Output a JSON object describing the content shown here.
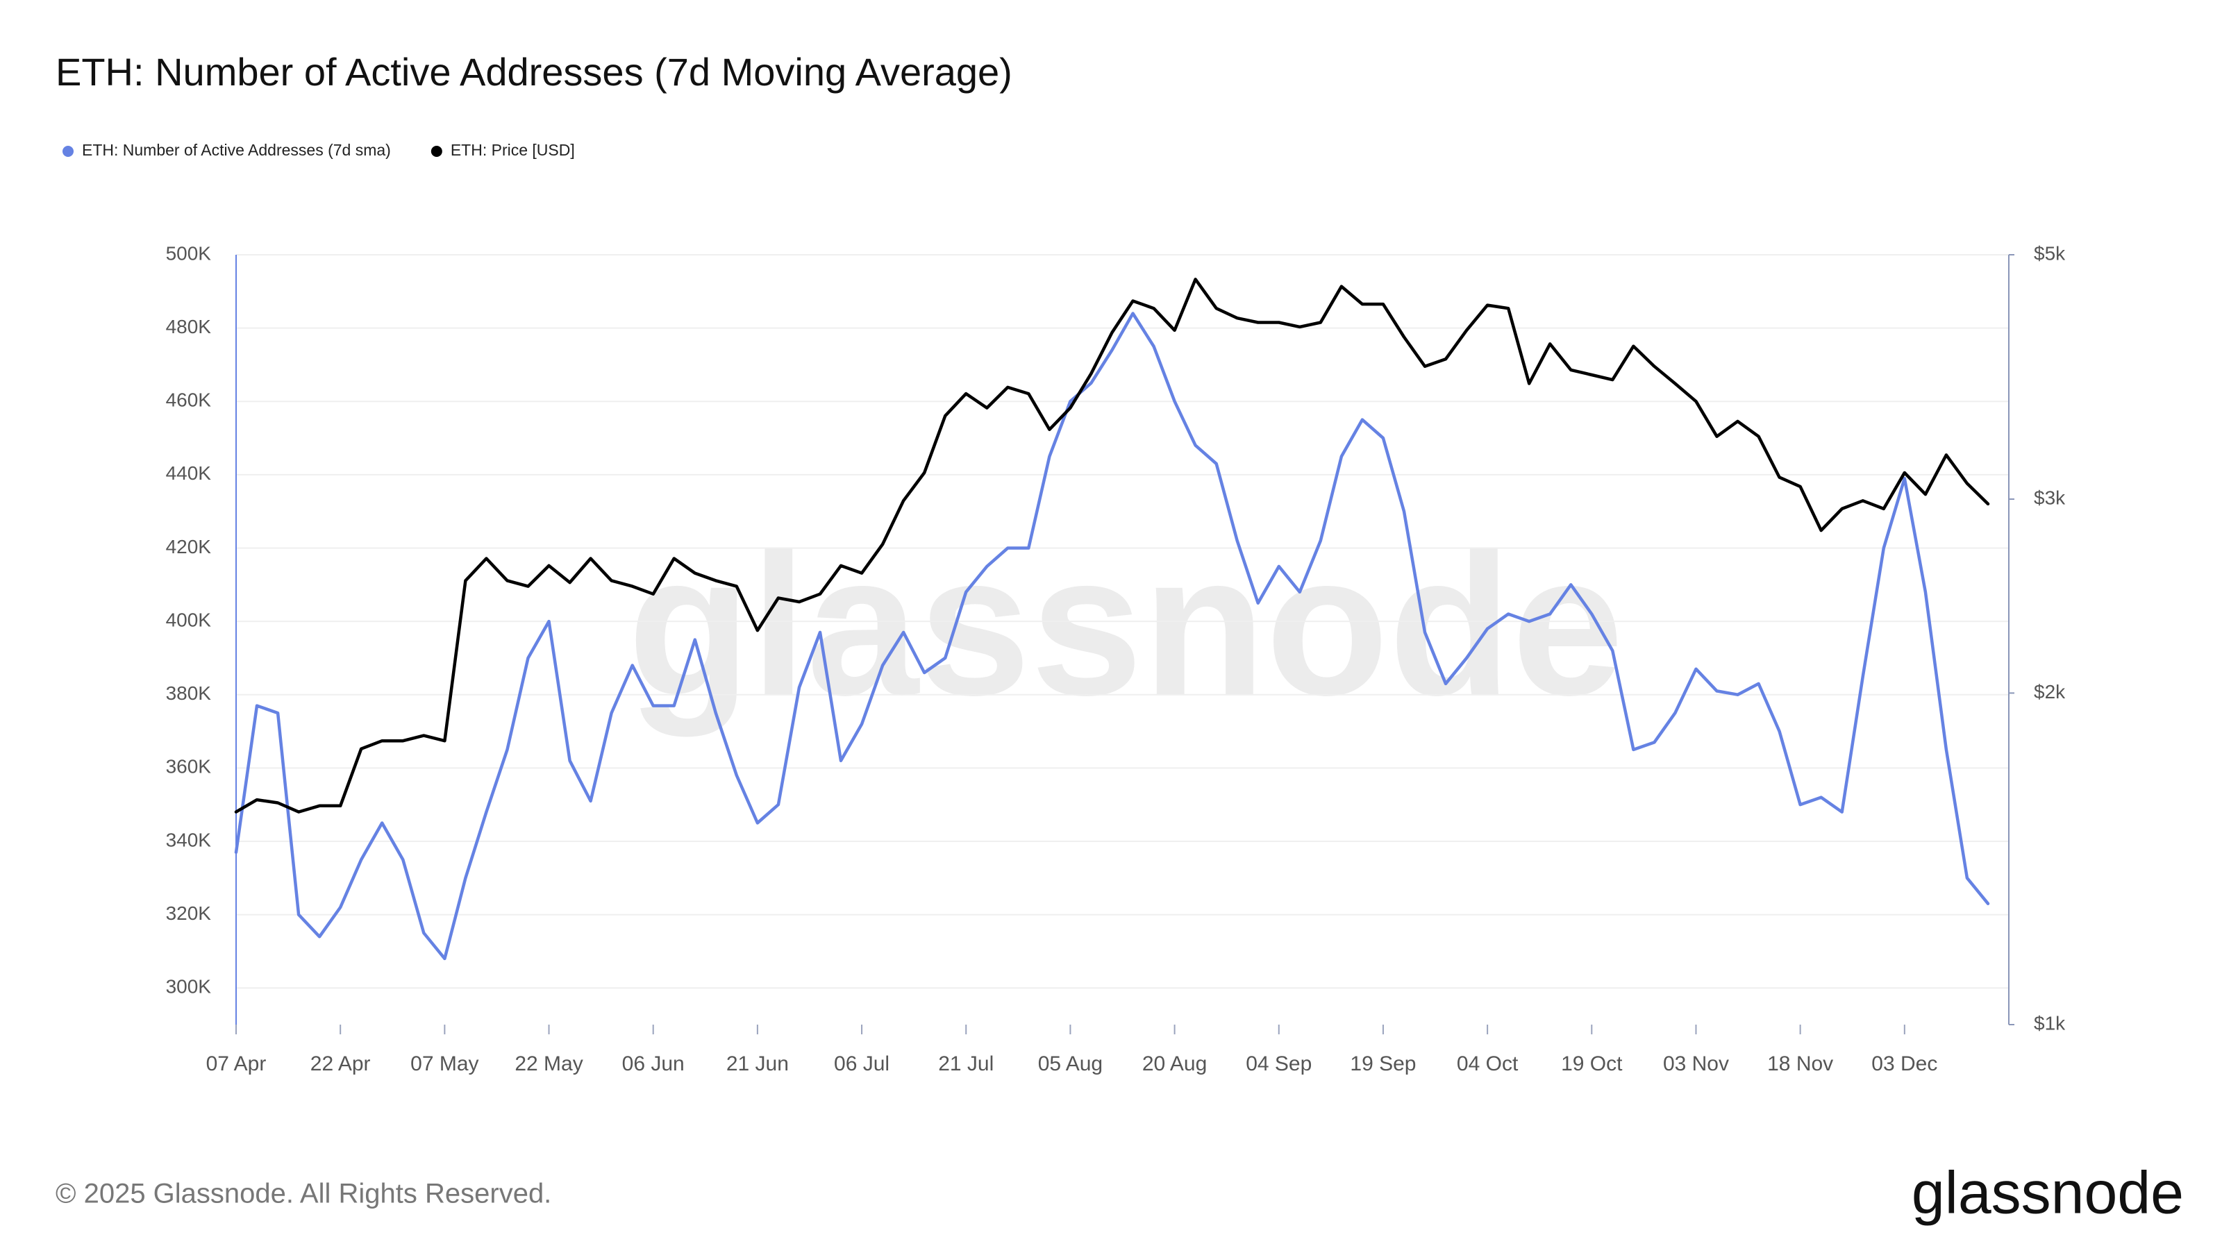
{
  "chart_data": {
    "type": "line",
    "title": "ETH: Number of Active Addresses (7d Moving Average)",
    "watermark": "glassnode",
    "footer": "© 2025 Glassnode. All Rights Reserved.",
    "logo": "glassnode",
    "legend": "top-left",
    "grid": true,
    "x": [
      0,
      3,
      6,
      9,
      12,
      15,
      18,
      21,
      24,
      27,
      30,
      33,
      36,
      39,
      42,
      45,
      48,
      51,
      54,
      57,
      60,
      63,
      66,
      69,
      72,
      75,
      78,
      81,
      84,
      87,
      90,
      93,
      96,
      99,
      102,
      105,
      108,
      111,
      114,
      117,
      120,
      123,
      126,
      129,
      132,
      135,
      138,
      141,
      144,
      147,
      150,
      153,
      156,
      159,
      162,
      165,
      168,
      171,
      174,
      177,
      180,
      183,
      186,
      189,
      192,
      195,
      198,
      201,
      204,
      207,
      210,
      213,
      216,
      219,
      222,
      225,
      228,
      231,
      234,
      237,
      240,
      243,
      246,
      249,
      252
    ],
    "xlim": [
      0,
      255
    ],
    "xticks": [
      {
        "value": 0,
        "label": "07 Apr"
      },
      {
        "value": 15,
        "label": "22 Apr"
      },
      {
        "value": 30,
        "label": "07 May"
      },
      {
        "value": 45,
        "label": "22 May"
      },
      {
        "value": 60,
        "label": "06 Jun"
      },
      {
        "value": 75,
        "label": "21 Jun"
      },
      {
        "value": 90,
        "label": "06 Jul"
      },
      {
        "value": 105,
        "label": "21 Jul"
      },
      {
        "value": 120,
        "label": "05 Aug"
      },
      {
        "value": 135,
        "label": "20 Aug"
      },
      {
        "value": 150,
        "label": "04 Sep"
      },
      {
        "value": 165,
        "label": "19 Sep"
      },
      {
        "value": 180,
        "label": "04 Oct"
      },
      {
        "value": 195,
        "label": "19 Oct"
      },
      {
        "value": 210,
        "label": "03 Nov"
      },
      {
        "value": 225,
        "label": "18 Nov"
      },
      {
        "value": 240,
        "label": "03 Dec"
      }
    ],
    "ylim": [
      290000,
      500000
    ],
    "yticks": [
      {
        "value": 300000,
        "label": "300K"
      },
      {
        "value": 320000,
        "label": "320K"
      },
      {
        "value": 340000,
        "label": "340K"
      },
      {
        "value": 360000,
        "label": "360K"
      },
      {
        "value": 380000,
        "label": "380K"
      },
      {
        "value": 400000,
        "label": "400K"
      },
      {
        "value": 420000,
        "label": "420K"
      },
      {
        "value": 440000,
        "label": "440K"
      },
      {
        "value": 460000,
        "label": "460K"
      },
      {
        "value": 480000,
        "label": "480K"
      },
      {
        "value": 500000,
        "label": "500K"
      }
    ],
    "y2log": true,
    "y2lim": [
      1000,
      5000
    ],
    "y2ticks": [
      {
        "value": 1000,
        "label": "$1k"
      },
      {
        "value": 2000,
        "label": "$2k"
      },
      {
        "value": 3000,
        "label": "$3k"
      },
      {
        "value": 5000,
        "label": "$5k"
      }
    ],
    "series": [
      {
        "name": "ETH: Number of Active Addresses (7d sma)",
        "color": "#6582e3",
        "values": [
          337000,
          377000,
          375000,
          320000,
          314000,
          322000,
          335000,
          345000,
          335000,
          315000,
          308000,
          330000,
          348000,
          365000,
          390000,
          400000,
          362000,
          351000,
          375000,
          388000,
          377000,
          377000,
          395000,
          375000,
          358000,
          345000,
          350000,
          382000,
          397000,
          362000,
          372000,
          388000,
          397000,
          386000,
          390000,
          408000,
          415000,
          420000,
          420000,
          445000,
          460000,
          465000,
          474000,
          484000,
          475000,
          460000,
          448000,
          443000,
          422000,
          405000,
          415000,
          408000,
          422000,
          445000,
          455000,
          450000,
          430000,
          397000,
          383000,
          390000,
          398000,
          402000,
          400000,
          402000,
          410000,
          402000,
          392000,
          365000,
          367000,
          375000,
          387000,
          381000,
          380000,
          383000,
          370000,
          350000,
          352000,
          348000,
          385000,
          420000,
          439000,
          408000,
          365000,
          330000,
          323000
        ]
      },
      {
        "name": "ETH: Price [USD]",
        "color": "#000000",
        "axis": "y2",
        "values": [
          1560,
          1600,
          1590,
          1560,
          1580,
          1580,
          1780,
          1810,
          1810,
          1830,
          1810,
          2530,
          2650,
          2530,
          2500,
          2610,
          2520,
          2650,
          2530,
          2500,
          2460,
          2650,
          2570,
          2530,
          2500,
          2280,
          2440,
          2420,
          2460,
          2610,
          2570,
          2730,
          2990,
          3170,
          3570,
          3740,
          3630,
          3790,
          3740,
          3470,
          3630,
          3900,
          4250,
          4540,
          4470,
          4270,
          4750,
          4470,
          4380,
          4340,
          4340,
          4300,
          4340,
          4680,
          4510,
          4510,
          4210,
          3960,
          4020,
          4270,
          4500,
          4470,
          3820,
          4150,
          3930,
          3890,
          3850,
          4130,
          3960,
          3820,
          3680,
          3420,
          3530,
          3420,
          3140,
          3080,
          2810,
          2940,
          2990,
          2940,
          3170,
          3030,
          3290,
          3100,
          2970
        ]
      }
    ]
  }
}
